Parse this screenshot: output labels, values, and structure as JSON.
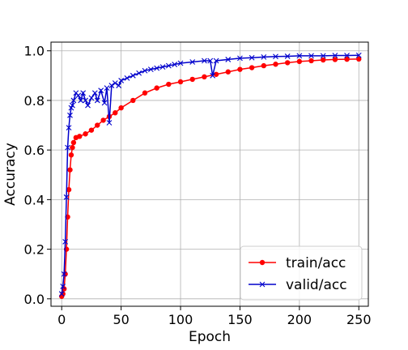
{
  "chart_data": {
    "type": "line",
    "xlabel": "Epoch",
    "ylabel": "Accuracy",
    "xlim": [
      -9,
      258
    ],
    "ylim": [
      -0.03,
      1.035
    ],
    "xticks": [
      0,
      50,
      100,
      150,
      200,
      250
    ],
    "yticks": [
      0.0,
      0.2,
      0.4,
      0.6,
      0.8,
      1.0
    ],
    "grid": true,
    "legend_position": "lower right",
    "series": [
      {
        "name": "train/acc",
        "color": "#ff0000",
        "marker": "circle",
        "x": [
          0,
          1,
          2,
          3,
          4,
          5,
          6,
          7,
          8,
          9,
          10,
          12,
          15,
          20,
          25,
          30,
          35,
          40,
          45,
          50,
          60,
          70,
          80,
          90,
          100,
          110,
          120,
          130,
          140,
          150,
          160,
          170,
          180,
          190,
          200,
          210,
          220,
          230,
          240,
          250
        ],
        "y": [
          0.01,
          0.02,
          0.04,
          0.1,
          0.2,
          0.33,
          0.44,
          0.52,
          0.58,
          0.61,
          0.63,
          0.65,
          0.655,
          0.665,
          0.68,
          0.7,
          0.72,
          0.735,
          0.75,
          0.77,
          0.8,
          0.83,
          0.85,
          0.865,
          0.875,
          0.885,
          0.895,
          0.905,
          0.915,
          0.925,
          0.932,
          0.94,
          0.946,
          0.952,
          0.957,
          0.96,
          0.963,
          0.965,
          0.966,
          0.967
        ]
      },
      {
        "name": "valid/acc",
        "color": "#0000cc",
        "marker": "x",
        "x": [
          0,
          1,
          2,
          3,
          4,
          5,
          6,
          7,
          8,
          9,
          10,
          12,
          14,
          16,
          18,
          20,
          22,
          25,
          28,
          30,
          33,
          36,
          38,
          40,
          42,
          45,
          48,
          50,
          55,
          60,
          65,
          70,
          75,
          80,
          85,
          90,
          95,
          100,
          110,
          120,
          125,
          127,
          130,
          140,
          150,
          160,
          170,
          180,
          190,
          200,
          210,
          220,
          230,
          240,
          250
        ],
        "y": [
          0.02,
          0.05,
          0.1,
          0.23,
          0.41,
          0.61,
          0.69,
          0.74,
          0.77,
          0.78,
          0.8,
          0.83,
          0.82,
          0.8,
          0.83,
          0.8,
          0.78,
          0.81,
          0.83,
          0.8,
          0.84,
          0.79,
          0.85,
          0.71,
          0.86,
          0.87,
          0.86,
          0.88,
          0.89,
          0.9,
          0.91,
          0.92,
          0.925,
          0.93,
          0.935,
          0.94,
          0.945,
          0.95,
          0.955,
          0.96,
          0.96,
          0.9,
          0.96,
          0.965,
          0.97,
          0.972,
          0.975,
          0.977,
          0.978,
          0.98,
          0.98,
          0.98,
          0.981,
          0.981,
          0.982
        ]
      }
    ]
  }
}
